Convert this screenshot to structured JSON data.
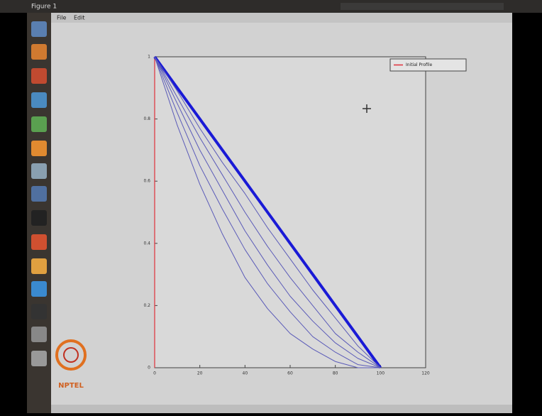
{
  "window": {
    "title": "Figure 1",
    "menu": [
      "File",
      "Edit"
    ]
  },
  "watermark": "NPTEL",
  "chart_data": {
    "type": "line",
    "xlim": [
      0,
      120
    ],
    "xticks": [
      0,
      20,
      40,
      60,
      80,
      100,
      120
    ],
    "ylim": [
      0,
      1
    ],
    "yticks": [
      0,
      0.2,
      0.4,
      0.6,
      0.8,
      1
    ],
    "legend": "upper right",
    "series": [
      {
        "name": "Initial Profile",
        "color": "#e0303a",
        "x": [
          0,
          0
        ],
        "values": [
          0,
          1
        ]
      },
      {
        "color": "#1a1ad6",
        "width": 4,
        "x": [
          0,
          10,
          20,
          30,
          40,
          50,
          60,
          70,
          80,
          90,
          100
        ],
        "values": [
          1,
          0.9,
          0.8,
          0.7,
          0.6,
          0.5,
          0.4,
          0.3,
          0.2,
          0.1,
          0
        ]
      },
      {
        "color": "#5a5ab8",
        "width": 1,
        "x": [
          0,
          10,
          20,
          30,
          40,
          50,
          60,
          70,
          80,
          90,
          100
        ],
        "values": [
          1,
          0.89,
          0.77,
          0.66,
          0.56,
          0.45,
          0.35,
          0.25,
          0.16,
          0.07,
          0
        ]
      },
      {
        "color": "#5a5ab8",
        "width": 1,
        "x": [
          0,
          10,
          20,
          30,
          40,
          50,
          60,
          70,
          80,
          90,
          100
        ],
        "values": [
          1,
          0.87,
          0.74,
          0.62,
          0.5,
          0.39,
          0.29,
          0.2,
          0.11,
          0.05,
          0
        ]
      },
      {
        "color": "#5a5ab8",
        "width": 1,
        "x": [
          0,
          10,
          20,
          30,
          40,
          50,
          60,
          70,
          80,
          90,
          100
        ],
        "values": [
          1,
          0.85,
          0.7,
          0.57,
          0.44,
          0.33,
          0.23,
          0.15,
          0.08,
          0.03,
          0
        ]
      },
      {
        "color": "#5a5ab8",
        "width": 1,
        "x": [
          0,
          10,
          20,
          30,
          40,
          50,
          60,
          70,
          80,
          90,
          100
        ],
        "values": [
          1,
          0.82,
          0.65,
          0.51,
          0.38,
          0.27,
          0.18,
          0.1,
          0.05,
          0.01,
          0
        ]
      },
      {
        "color": "#5a5ab8",
        "width": 1,
        "x": [
          0,
          10,
          20,
          30,
          40,
          50,
          60,
          70,
          80,
          90,
          100
        ],
        "values": [
          1,
          0.78,
          0.59,
          0.43,
          0.29,
          0.19,
          0.11,
          0.06,
          0.02,
          0,
          0
        ]
      }
    ]
  }
}
